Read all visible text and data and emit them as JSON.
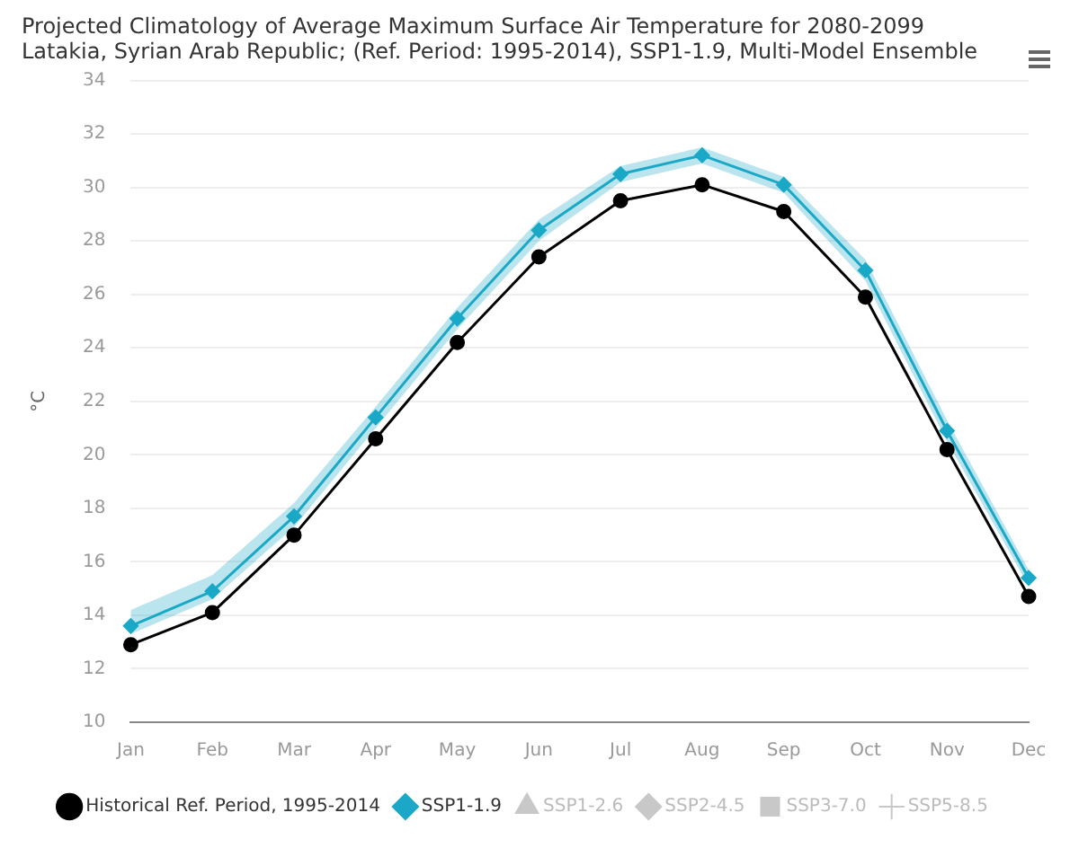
{
  "chart_data": {
    "type": "line",
    "title": "Projected Climatology of Average Maximum Surface Air Temperature for 2080-2099\nLatakia, Syrian Arab Republic; (Ref. Period: 1995-2014), SSP1-1.9, Multi-Model Ensemble",
    "ylabel": "°C",
    "categories": [
      "Jan",
      "Feb",
      "Mar",
      "Apr",
      "May",
      "Jun",
      "Jul",
      "Aug",
      "Sep",
      "Oct",
      "Nov",
      "Dec"
    ],
    "series": [
      {
        "name": "Historical Ref. Period, 1995-2014",
        "color": "#000000",
        "marker": "circle",
        "values": [
          12.9,
          14.1,
          17.0,
          20.6,
          24.2,
          27.4,
          29.5,
          30.1,
          29.1,
          25.9,
          20.2,
          14.7
        ]
      },
      {
        "name": "SSP1-1.9",
        "color": "#1ba8c8",
        "marker": "diamond",
        "values": [
          13.6,
          14.9,
          17.7,
          21.4,
          25.1,
          28.4,
          30.5,
          31.2,
          30.1,
          26.9,
          20.9,
          15.4
        ],
        "lower": [
          13.3,
          14.6,
          17.3,
          21.0,
          24.7,
          28.0,
          30.2,
          30.9,
          29.8,
          26.5,
          20.5,
          15.1
        ],
        "upper": [
          14.2,
          15.5,
          18.2,
          21.8,
          25.5,
          28.8,
          30.8,
          31.5,
          30.4,
          27.3,
          21.3,
          15.7
        ]
      },
      {
        "name": "SSP1-2.6",
        "color": "#c8c8c8",
        "marker": "triangle",
        "values": [
          null,
          null,
          null,
          null,
          null,
          null,
          null,
          null,
          null,
          null,
          null,
          null
        ]
      },
      {
        "name": "SSP2-4.5",
        "color": "#c8c8c8",
        "marker": "diamond",
        "values": [
          null,
          null,
          null,
          null,
          null,
          null,
          null,
          null,
          null,
          null,
          null,
          null
        ]
      },
      {
        "name": "SSP3-7.0",
        "color": "#c8c8c8",
        "marker": "square",
        "values": [
          null,
          null,
          null,
          null,
          null,
          null,
          null,
          null,
          null,
          null,
          null,
          null
        ]
      },
      {
        "name": "SSP5-8.5",
        "color": "#c8c8c8",
        "marker": "cross",
        "values": [
          null,
          null,
          null,
          null,
          null,
          null,
          null,
          null,
          null,
          null,
          null,
          null
        ]
      }
    ],
    "ylim": [
      10,
      34
    ],
    "yticks": [
      10,
      12,
      14,
      16,
      18,
      20,
      22,
      24,
      26,
      28,
      30,
      32,
      34
    ],
    "grid": "y",
    "legend": "bottom",
    "line_style": "solid"
  }
}
